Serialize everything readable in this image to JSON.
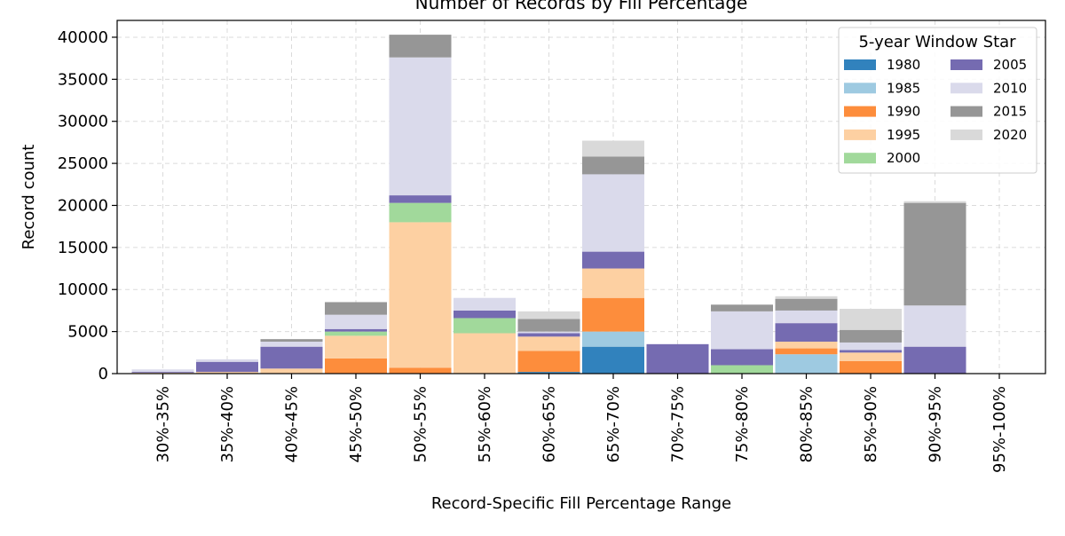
{
  "chart_data": {
    "type": "bar",
    "stacked": true,
    "title": "Number of Records by Fill Percentage",
    "xlabel": "Record-Specific Fill Percentage Range",
    "ylabel": "Record count",
    "ylim": [
      0,
      42000
    ],
    "yticks": [
      0,
      5000,
      10000,
      15000,
      20000,
      25000,
      30000,
      35000,
      40000
    ],
    "grid": true,
    "legend": {
      "title": "5-year Window Star",
      "placement": "top-right",
      "columns": 2
    },
    "categories": [
      "30%-35%",
      "35%-40%",
      "40%-45%",
      "45%-50%",
      "50%-55%",
      "55%-60%",
      "60%-65%",
      "65%-70%",
      "70%-75%",
      "75%-80%",
      "80%-85%",
      "85%-90%",
      "90%-95%",
      "95%-100%"
    ],
    "series": [
      {
        "name": "1980",
        "color": "#3182bd",
        "values": [
          0,
          0,
          0,
          0,
          0,
          0,
          200,
          3200,
          0,
          0,
          0,
          0,
          0,
          0
        ]
      },
      {
        "name": "1985",
        "color": "#9ecae1",
        "values": [
          0,
          0,
          0,
          0,
          0,
          0,
          0,
          1800,
          0,
          0,
          2300,
          0,
          0,
          0
        ]
      },
      {
        "name": "1990",
        "color": "#fd8d3c",
        "values": [
          0,
          0,
          0,
          1800,
          700,
          0,
          2500,
          4000,
          0,
          0,
          700,
          1500,
          0,
          0
        ]
      },
      {
        "name": "1995",
        "color": "#fdd0a2",
        "values": [
          100,
          200,
          600,
          2700,
          17300,
          4800,
          1700,
          3500,
          0,
          0,
          800,
          1000,
          0,
          0
        ]
      },
      {
        "name": "2000",
        "color": "#a1d99b",
        "values": [
          0,
          0,
          0,
          500,
          2300,
          1800,
          0,
          0,
          0,
          1000,
          0,
          0,
          0,
          0
        ]
      },
      {
        "name": "2005",
        "color": "#756bb1",
        "values": [
          100,
          1200,
          2600,
          300,
          900,
          900,
          400,
          2000,
          3500,
          1900,
          2200,
          300,
          3200,
          0
        ]
      },
      {
        "name": "2010",
        "color": "#dadaeb",
        "values": [
          300,
          300,
          600,
          1700,
          16400,
          1500,
          200,
          9200,
          0,
          4500,
          1500,
          900,
          4900,
          0
        ]
      },
      {
        "name": "2015",
        "color": "#969696",
        "values": [
          0,
          0,
          300,
          1500,
          2700,
          0,
          1500,
          2100,
          0,
          800,
          1400,
          1500,
          12200,
          0
        ]
      },
      {
        "name": "2020",
        "color": "#d9d9d9",
        "values": [
          0,
          0,
          0,
          0,
          0,
          0,
          900,
          1900,
          0,
          0,
          300,
          2500,
          200,
          0
        ]
      }
    ]
  }
}
